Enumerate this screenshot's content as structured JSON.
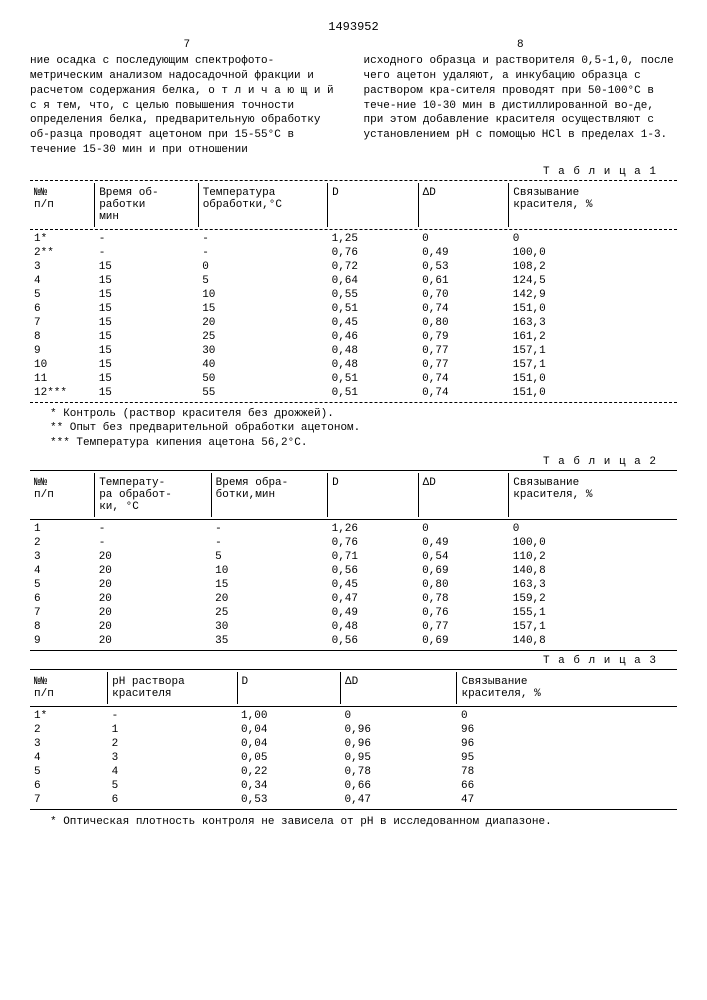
{
  "doc_number": "1493952",
  "left_page_num": "7",
  "right_page_num": "8",
  "left_text": "ние осадка с последующим спектрофото-метрическим анализом надосадочной фракции и расчетом содержания белка, о т л и ч а ю щ и й с я тем, что, с целью повышения точности определения белка, предварительную обработку об-разца проводят ацетоном при 15-55°С в течение 15-30 мин и при отношении",
  "right_text": "исходного образца и растворителя 0,5-1,0, после чего ацетон удаляют, а инкубацию образца с раствором кра-сителя проводят при 50-100°С в тече-ние 10-30 мин в дистиллированной во-де, при этом добавление красителя осуществляют с установлением pH с помощью HCl в пределах 1-3.",
  "table1": {
    "label": "Т а б л и ц а  1",
    "headers": [
      "№№\nп/п",
      "Время об-\nработки\nмин",
      "Температура\nобработки,°С",
      "D",
      "ΔD",
      "Связывание\nкрасителя, %"
    ],
    "rows": [
      [
        "1*",
        "-",
        "-",
        "1,25",
        "0",
        "0"
      ],
      [
        "2**",
        "-",
        "-",
        "0,76",
        "0,49",
        "100,0"
      ],
      [
        "3",
        "15",
        "0",
        "0,72",
        "0,53",
        "108,2"
      ],
      [
        "4",
        "15",
        "5",
        "0,64",
        "0,61",
        "124,5"
      ],
      [
        "5",
        "15",
        "10",
        "0,55",
        "0,70",
        "142,9"
      ],
      [
        "6",
        "15",
        "15",
        "0,51",
        "0,74",
        "151,0"
      ],
      [
        "7",
        "15",
        "20",
        "0,45",
        "0,80",
        "163,3"
      ],
      [
        "8",
        "15",
        "25",
        "0,46",
        "0,79",
        "161,2"
      ],
      [
        "9",
        "15",
        "30",
        "0,48",
        "0,77",
        "157,1"
      ],
      [
        "10",
        "15",
        "40",
        "0,48",
        "0,77",
        "157,1"
      ],
      [
        "11",
        "15",
        "50",
        "0,51",
        "0,74",
        "151,0"
      ],
      [
        "12***",
        "15",
        "55",
        "0,51",
        "0,74",
        "151,0"
      ]
    ],
    "footnotes": [
      "* Контроль (раствор красителя без дрожжей).",
      "** Опыт без предварительной обработки ацетоном.",
      "*** Температура кипения ацетона 56,2°С."
    ],
    "col_widths": [
      "10%",
      "16%",
      "20%",
      "14%",
      "14%",
      "26%"
    ]
  },
  "table2": {
    "label": "Т а б л и ц а  2",
    "headers": [
      "№№\nп/п",
      "Температу-\nра обработ-\nки, °С",
      "Время обра-\nботки,мин",
      "D",
      "ΔD",
      "Связывание\nкрасителя, %"
    ],
    "rows": [
      [
        "1",
        "-",
        "-",
        "1,26",
        "0",
        "0"
      ],
      [
        "2",
        "-",
        "-",
        "0,76",
        "0,49",
        "100,0"
      ],
      [
        "3",
        "20",
        "5",
        "0,71",
        "0,54",
        "110,2"
      ],
      [
        "4",
        "20",
        "10",
        "0,56",
        "0,69",
        "140,8"
      ],
      [
        "5",
        "20",
        "15",
        "0,45",
        "0,80",
        "163,3"
      ],
      [
        "6",
        "20",
        "20",
        "0,47",
        "0,78",
        "159,2"
      ],
      [
        "7",
        "20",
        "25",
        "0,49",
        "0,76",
        "155,1"
      ],
      [
        "8",
        "20",
        "30",
        "0,48",
        "0,77",
        "157,1"
      ],
      [
        "9",
        "20",
        "35",
        "0,56",
        "0,69",
        "140,8"
      ]
    ],
    "col_widths": [
      "10%",
      "18%",
      "18%",
      "14%",
      "14%",
      "26%"
    ]
  },
  "table3": {
    "label": "Т а б л и ц а  3",
    "headers": [
      "№№\nп/п",
      "pH раствора\nкрасителя",
      "D",
      "ΔD",
      "Связывание\nкрасителя, %"
    ],
    "rows": [
      [
        "1*",
        "-",
        "1,00",
        "0",
        "0"
      ],
      [
        "2",
        "1",
        "0,04",
        "0,96",
        "96"
      ],
      [
        "3",
        "2",
        "0,04",
        "0,96",
        "96"
      ],
      [
        "4",
        "3",
        "0,05",
        "0,95",
        "95"
      ],
      [
        "5",
        "4",
        "0,22",
        "0,78",
        "78"
      ],
      [
        "6",
        "5",
        "0,34",
        "0,66",
        "66"
      ],
      [
        "7",
        "6",
        "0,53",
        "0,47",
        "47"
      ]
    ],
    "footnote": "* Оптическая плотность контроля не зависела от pH в исследованном диапазоне.",
    "col_widths": [
      "12%",
      "20%",
      "16%",
      "18%",
      "34%"
    ]
  }
}
